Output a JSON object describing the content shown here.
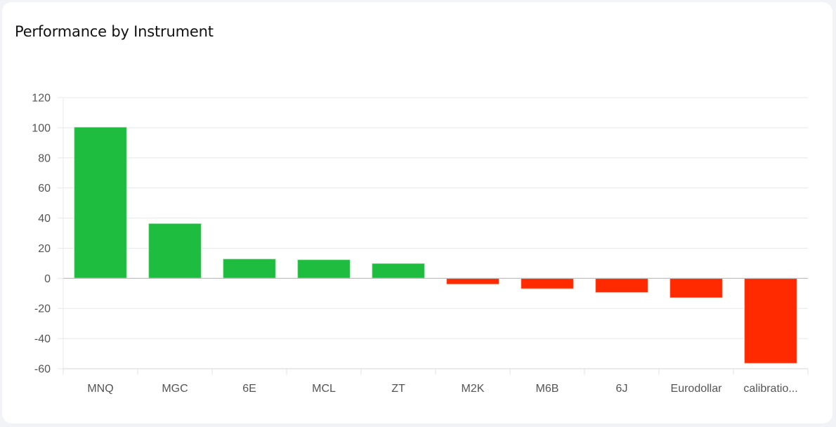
{
  "card": {
    "title": "Performance by Instrument"
  },
  "colors": {
    "positive": "#1fbd3f",
    "negative": "#ff2a00",
    "grid": "#e8e8e8",
    "axis": "#b8b8b8"
  },
  "chart_data": {
    "type": "bar",
    "title": "",
    "xlabel": "",
    "ylabel": "",
    "categories": [
      "MNQ",
      "MGC",
      "6E",
      "MCL",
      "ZT",
      "M2K",
      "M6B",
      "6J",
      "Eurodollar",
      "calibratio..."
    ],
    "values": [
      100.5,
      36.5,
      13,
      12.5,
      10,
      -4,
      -7,
      -9.5,
      -13,
      -56.5
    ],
    "ylim": [
      -60,
      120
    ],
    "yticks": [
      "120",
      "100",
      "80",
      "60",
      "40",
      "20",
      "0",
      "-20",
      "-40",
      "-60"
    ],
    "grid": true,
    "legend": "none"
  }
}
